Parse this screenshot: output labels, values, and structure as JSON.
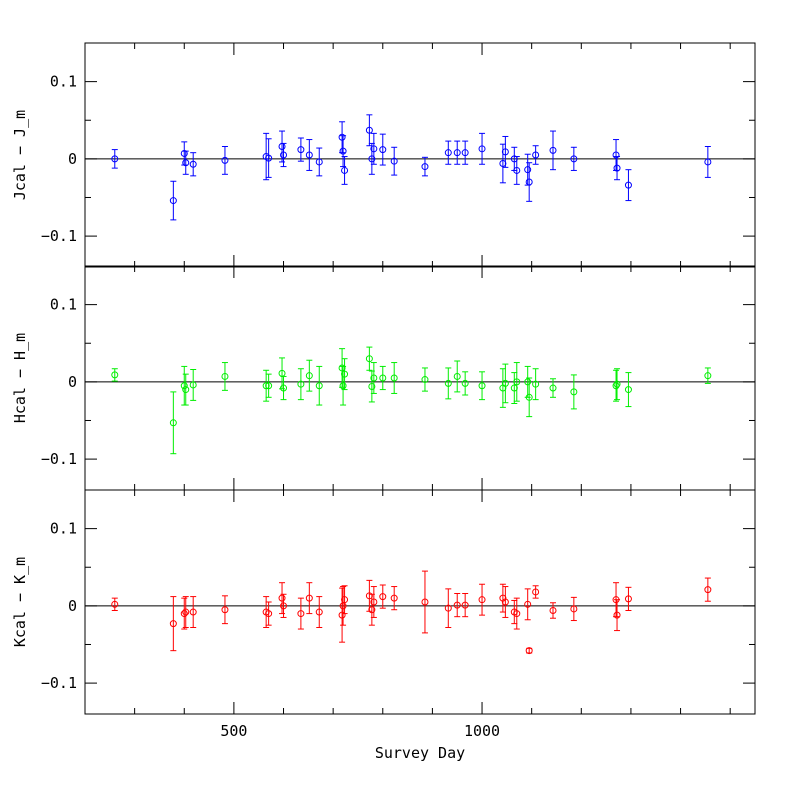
{
  "chart_data": {
    "type": "scatter",
    "xlabel": "Survey Day",
    "xlim": [
      200,
      1550
    ],
    "x_ticks": [
      500,
      1000
    ],
    "x_tick_labels": [
      "500",
      "1000"
    ],
    "x_minor_step": 100,
    "panels": [
      {
        "name": "J",
        "ylabel": "Jcal − J_m",
        "color": "#0000ff",
        "ylim": [
          -0.14,
          0.15
        ],
        "y_ticks": [
          -0.1,
          0,
          0.1
        ],
        "y_tick_labels": [
          "−0.1",
          "0",
          "0.1"
        ],
        "points": [
          {
            "x": 260,
            "y": 0.0,
            "err": 0.012
          },
          {
            "x": 378,
            "y": -0.054,
            "err": 0.025
          },
          {
            "x": 400,
            "y": 0.007,
            "err": 0.015
          },
          {
            "x": 403,
            "y": -0.005,
            "err": 0.015
          },
          {
            "x": 418,
            "y": -0.007,
            "err": 0.015
          },
          {
            "x": 482,
            "y": -0.002,
            "err": 0.018
          },
          {
            "x": 565,
            "y": 0.003,
            "err": 0.03
          },
          {
            "x": 570,
            "y": 0.001,
            "err": 0.025
          },
          {
            "x": 597,
            "y": 0.016,
            "err": 0.02
          },
          {
            "x": 600,
            "y": 0.005,
            "err": 0.015
          },
          {
            "x": 635,
            "y": 0.012,
            "err": 0.015
          },
          {
            "x": 652,
            "y": 0.005,
            "err": 0.02
          },
          {
            "x": 672,
            "y": -0.004,
            "err": 0.018
          },
          {
            "x": 718,
            "y": 0.028,
            "err": 0.02
          },
          {
            "x": 720,
            "y": 0.01,
            "err": 0.02
          },
          {
            "x": 723,
            "y": -0.015,
            "err": 0.018
          },
          {
            "x": 773,
            "y": 0.037,
            "err": 0.02
          },
          {
            "x": 778,
            "y": 0.0,
            "err": 0.02
          },
          {
            "x": 782,
            "y": 0.013,
            "err": 0.02
          },
          {
            "x": 800,
            "y": 0.012,
            "err": 0.02
          },
          {
            "x": 823,
            "y": -0.003,
            "err": 0.018
          },
          {
            "x": 885,
            "y": -0.01,
            "err": 0.012
          },
          {
            "x": 932,
            "y": 0.008,
            "err": 0.015
          },
          {
            "x": 950,
            "y": 0.008,
            "err": 0.015
          },
          {
            "x": 966,
            "y": 0.008,
            "err": 0.015
          },
          {
            "x": 1000,
            "y": 0.013,
            "err": 0.02
          },
          {
            "x": 1042,
            "y": -0.006,
            "err": 0.025
          },
          {
            "x": 1047,
            "y": 0.009,
            "err": 0.02
          },
          {
            "x": 1065,
            "y": 0.0,
            "err": 0.015
          },
          {
            "x": 1070,
            "y": -0.015,
            "err": 0.018
          },
          {
            "x": 1092,
            "y": -0.014,
            "err": 0.02
          },
          {
            "x": 1095,
            "y": -0.03,
            "err": 0.025
          },
          {
            "x": 1108,
            "y": 0.005,
            "err": 0.012
          },
          {
            "x": 1143,
            "y": 0.011,
            "err": 0.025
          },
          {
            "x": 1185,
            "y": 0.0,
            "err": 0.015
          },
          {
            "x": 1270,
            "y": 0.005,
            "err": 0.02
          },
          {
            "x": 1272,
            "y": -0.012,
            "err": 0.015
          },
          {
            "x": 1295,
            "y": -0.034,
            "err": 0.02
          },
          {
            "x": 1455,
            "y": -0.004,
            "err": 0.02
          }
        ]
      },
      {
        "name": "H",
        "ylabel": "Hcal − H_m",
        "color": "#00ee00",
        "ylim": [
          -0.14,
          0.15
        ],
        "y_ticks": [
          -0.1,
          0,
          0.1
        ],
        "y_tick_labels": [
          "−0.1",
          "0",
          "0.1"
        ],
        "points": [
          {
            "x": 260,
            "y": 0.009,
            "err": 0.008
          },
          {
            "x": 378,
            "y": -0.053,
            "err": 0.04
          },
          {
            "x": 400,
            "y": -0.005,
            "err": 0.025
          },
          {
            "x": 403,
            "y": -0.01,
            "err": 0.02
          },
          {
            "x": 418,
            "y": -0.004,
            "err": 0.02
          },
          {
            "x": 482,
            "y": 0.007,
            "err": 0.018
          },
          {
            "x": 565,
            "y": -0.005,
            "err": 0.02
          },
          {
            "x": 570,
            "y": -0.005,
            "err": 0.015
          },
          {
            "x": 597,
            "y": 0.011,
            "err": 0.02
          },
          {
            "x": 600,
            "y": -0.008,
            "err": 0.015
          },
          {
            "x": 635,
            "y": -0.003,
            "err": 0.02
          },
          {
            "x": 652,
            "y": 0.008,
            "err": 0.02
          },
          {
            "x": 672,
            "y": -0.005,
            "err": 0.025
          },
          {
            "x": 718,
            "y": 0.018,
            "err": 0.025
          },
          {
            "x": 720,
            "y": -0.005,
            "err": 0.025
          },
          {
            "x": 723,
            "y": 0.01,
            "err": 0.02
          },
          {
            "x": 773,
            "y": 0.03,
            "err": 0.015
          },
          {
            "x": 778,
            "y": -0.006,
            "err": 0.02
          },
          {
            "x": 782,
            "y": 0.005,
            "err": 0.02
          },
          {
            "x": 800,
            "y": 0.005,
            "err": 0.015
          },
          {
            "x": 823,
            "y": 0.005,
            "err": 0.02
          },
          {
            "x": 885,
            "y": 0.003,
            "err": 0.015
          },
          {
            "x": 932,
            "y": -0.002,
            "err": 0.02
          },
          {
            "x": 950,
            "y": 0.007,
            "err": 0.02
          },
          {
            "x": 966,
            "y": -0.002,
            "err": 0.015
          },
          {
            "x": 1000,
            "y": -0.005,
            "err": 0.018
          },
          {
            "x": 1042,
            "y": -0.008,
            "err": 0.025
          },
          {
            "x": 1047,
            "y": -0.002,
            "err": 0.025
          },
          {
            "x": 1065,
            "y": -0.008,
            "err": 0.02
          },
          {
            "x": 1070,
            "y": 0.0,
            "err": 0.025
          },
          {
            "x": 1092,
            "y": 0.0,
            "err": 0.02
          },
          {
            "x": 1095,
            "y": -0.02,
            "err": 0.025
          },
          {
            "x": 1108,
            "y": -0.003,
            "err": 0.02
          },
          {
            "x": 1143,
            "y": -0.008,
            "err": 0.012
          },
          {
            "x": 1185,
            "y": -0.013,
            "err": 0.022
          },
          {
            "x": 1270,
            "y": -0.005,
            "err": 0.02
          },
          {
            "x": 1272,
            "y": -0.003,
            "err": 0.02
          },
          {
            "x": 1295,
            "y": -0.01,
            "err": 0.022
          },
          {
            "x": 1455,
            "y": 0.008,
            "err": 0.01
          }
        ]
      },
      {
        "name": "K",
        "ylabel": "Kcal − K_m",
        "color": "#ff0000",
        "ylim": [
          -0.14,
          0.15
        ],
        "y_ticks": [
          -0.1,
          0,
          0.1
        ],
        "y_tick_labels": [
          "−0.1",
          "0",
          "0.1"
        ],
        "points": [
          {
            "x": 260,
            "y": 0.002,
            "err": 0.008
          },
          {
            "x": 378,
            "y": -0.023,
            "err": 0.035
          },
          {
            "x": 400,
            "y": -0.01,
            "err": 0.02
          },
          {
            "x": 403,
            "y": -0.008,
            "err": 0.02
          },
          {
            "x": 418,
            "y": -0.008,
            "err": 0.02
          },
          {
            "x": 482,
            "y": -0.005,
            "err": 0.018
          },
          {
            "x": 565,
            "y": -0.008,
            "err": 0.02
          },
          {
            "x": 570,
            "y": -0.01,
            "err": 0.015
          },
          {
            "x": 597,
            "y": 0.01,
            "err": 0.02
          },
          {
            "x": 600,
            "y": 0.0,
            "err": 0.015
          },
          {
            "x": 635,
            "y": -0.01,
            "err": 0.02
          },
          {
            "x": 652,
            "y": 0.01,
            "err": 0.02
          },
          {
            "x": 672,
            "y": -0.008,
            "err": 0.02
          },
          {
            "x": 718,
            "y": -0.012,
            "err": 0.035
          },
          {
            "x": 720,
            "y": 0.0,
            "err": 0.025
          },
          {
            "x": 723,
            "y": 0.008,
            "err": 0.018
          },
          {
            "x": 773,
            "y": 0.013,
            "err": 0.02
          },
          {
            "x": 778,
            "y": -0.005,
            "err": 0.02
          },
          {
            "x": 782,
            "y": 0.005,
            "err": 0.02
          },
          {
            "x": 800,
            "y": 0.012,
            "err": 0.015
          },
          {
            "x": 823,
            "y": 0.01,
            "err": 0.015
          },
          {
            "x": 885,
            "y": 0.005,
            "err": 0.04
          },
          {
            "x": 932,
            "y": -0.003,
            "err": 0.025
          },
          {
            "x": 950,
            "y": 0.001,
            "err": 0.015
          },
          {
            "x": 966,
            "y": 0.001,
            "err": 0.015
          },
          {
            "x": 1000,
            "y": 0.008,
            "err": 0.02
          },
          {
            "x": 1042,
            "y": 0.01,
            "err": 0.018
          },
          {
            "x": 1047,
            "y": 0.005,
            "err": 0.02
          },
          {
            "x": 1065,
            "y": -0.008,
            "err": 0.015
          },
          {
            "x": 1070,
            "y": -0.01,
            "err": 0.02
          },
          {
            "x": 1092,
            "y": 0.002,
            "err": 0.02
          },
          {
            "x": 1095,
            "y": -0.058,
            "err": 0.003
          },
          {
            "x": 1108,
            "y": 0.018,
            "err": 0.008
          },
          {
            "x": 1143,
            "y": -0.006,
            "err": 0.01
          },
          {
            "x": 1185,
            "y": -0.004,
            "err": 0.015
          },
          {
            "x": 1270,
            "y": 0.008,
            "err": 0.022
          },
          {
            "x": 1272,
            "y": -0.012,
            "err": 0.02
          },
          {
            "x": 1295,
            "y": 0.009,
            "err": 0.015
          },
          {
            "x": 1455,
            "y": 0.021,
            "err": 0.015
          }
        ]
      }
    ]
  }
}
